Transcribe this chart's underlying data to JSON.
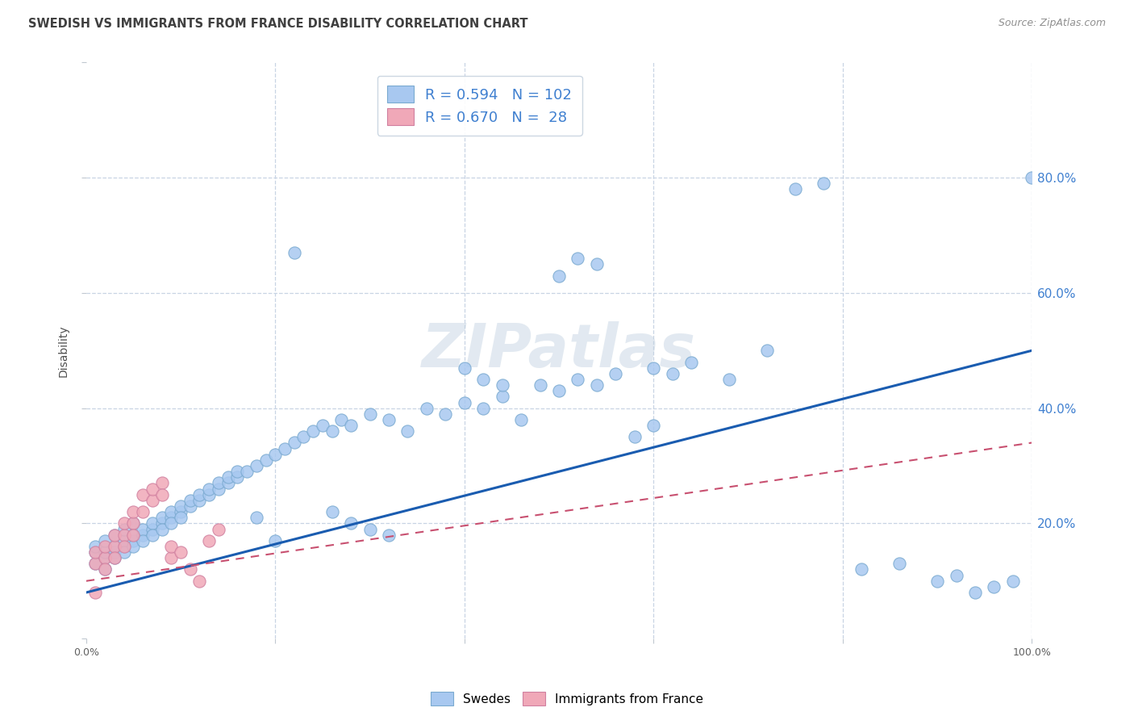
{
  "title": "SWEDISH VS IMMIGRANTS FROM FRANCE DISABILITY CORRELATION CHART",
  "source": "Source: ZipAtlas.com",
  "ylabel": "Disability",
  "legend_swedes_R": "0.594",
  "legend_swedes_N": "102",
  "legend_france_R": "0.670",
  "legend_france_N": "28",
  "legend_label_swedes": "Swedes",
  "legend_label_france": "Immigrants from France",
  "swede_color": "#a8c8f0",
  "swede_edge_color": "#7aaad0",
  "france_color": "#f0a8b8",
  "france_edge_color": "#d080a0",
  "trend_swede_color": "#1a5cb0",
  "trend_france_color": "#c85070",
  "background_color": "#ffffff",
  "grid_color": "#c8d4e4",
  "watermark": "ZIPatlas",
  "right_label_color": "#4080d0",
  "title_color": "#404040",
  "source_color": "#909090",
  "ylabel_color": "#505050",
  "swedes_x": [
    1,
    1,
    1,
    2,
    2,
    2,
    2,
    3,
    3,
    3,
    3,
    4,
    4,
    4,
    4,
    5,
    5,
    5,
    5,
    6,
    6,
    6,
    7,
    7,
    7,
    8,
    8,
    8,
    9,
    9,
    9,
    10,
    10,
    10,
    11,
    11,
    12,
    12,
    13,
    13,
    14,
    14,
    15,
    15,
    16,
    16,
    17,
    18,
    19,
    20,
    21,
    22,
    23,
    24,
    25,
    26,
    27,
    28,
    30,
    32,
    34,
    36,
    38,
    40,
    42,
    44,
    46,
    48,
    50,
    52,
    54,
    56,
    58,
    60,
    62,
    64,
    68,
    72,
    75,
    78,
    82,
    86,
    90,
    92,
    94,
    96,
    98,
    100,
    40,
    42,
    22,
    52,
    54,
    50,
    44,
    60,
    28,
    30,
    32,
    20,
    26,
    18
  ],
  "swedes_y": [
    13,
    15,
    16,
    14,
    15,
    17,
    12,
    15,
    16,
    14,
    18,
    16,
    17,
    15,
    19,
    17,
    18,
    16,
    20,
    18,
    19,
    17,
    19,
    20,
    18,
    20,
    21,
    19,
    21,
    22,
    20,
    22,
    23,
    21,
    23,
    24,
    24,
    25,
    25,
    26,
    26,
    27,
    27,
    28,
    28,
    29,
    29,
    30,
    31,
    32,
    33,
    34,
    35,
    36,
    37,
    36,
    38,
    37,
    39,
    38,
    36,
    40,
    39,
    41,
    40,
    42,
    38,
    44,
    43,
    45,
    44,
    46,
    35,
    47,
    46,
    48,
    45,
    50,
    78,
    79,
    12,
    13,
    10,
    11,
    8,
    9,
    10,
    80,
    47,
    45,
    67,
    66,
    65,
    63,
    44,
    37,
    20,
    19,
    18,
    17,
    22,
    21
  ],
  "france_x": [
    1,
    1,
    1,
    2,
    2,
    2,
    3,
    3,
    3,
    4,
    4,
    4,
    5,
    5,
    5,
    6,
    6,
    7,
    7,
    8,
    8,
    9,
    9,
    10,
    11,
    12,
    13,
    14
  ],
  "france_y": [
    13,
    15,
    8,
    14,
    16,
    12,
    16,
    18,
    14,
    18,
    20,
    16,
    20,
    22,
    18,
    22,
    25,
    24,
    26,
    27,
    25,
    14,
    16,
    15,
    12,
    10,
    17,
    19
  ],
  "swedes_trend_x0": 0,
  "swedes_trend_y0": 8,
  "swedes_trend_x1": 100,
  "swedes_trend_y1": 50,
  "france_trend_x0": 0,
  "france_trend_y0": 10,
  "france_trend_x1": 100,
  "france_trend_y1": 34,
  "xlim": [
    0,
    100
  ],
  "ylim": [
    0,
    100
  ],
  "xgrid_vals": [
    20,
    40,
    60,
    80,
    100
  ],
  "ygrid_vals": [
    20,
    40,
    60,
    80
  ]
}
